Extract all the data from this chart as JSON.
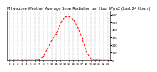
{
  "title": "Milwaukee Weather Average Solar Radiation per Hour W/m2 (Last 24 Hours)",
  "x_values": [
    0,
    1,
    2,
    3,
    4,
    5,
    6,
    7,
    8,
    9,
    10,
    11,
    12,
    13,
    14,
    15,
    16,
    17,
    18,
    19,
    20,
    21,
    22,
    23
  ],
  "x_labels": [
    "0",
    "1",
    "2",
    "3",
    "4",
    "5",
    "6",
    "7",
    "8",
    "9",
    "10",
    "11",
    "12",
    "13",
    "14",
    "15",
    "16",
    "17",
    "18",
    "19",
    "20",
    "21",
    "22",
    "23"
  ],
  "y_values": [
    0,
    0,
    0,
    0,
    0,
    0,
    0,
    5,
    50,
    160,
    270,
    350,
    490,
    570,
    580,
    530,
    430,
    290,
    110,
    20,
    5,
    0,
    0,
    0
  ],
  "line_color": "#ff0000",
  "bg_color": "#ffffff",
  "plot_bg": "#ffffff",
  "grid_color": "#888888",
  "ylim": [
    0,
    650
  ],
  "ytick_values": [
    0,
    100,
    200,
    300,
    400,
    500,
    600
  ],
  "ytick_labels": [
    "0",
    "100",
    "200",
    "300",
    "400",
    "500",
    "600"
  ],
  "title_fontsize": 3.8,
  "tick_fontsize": 3.0,
  "line_width": 0.7,
  "marker_size": 1.5
}
